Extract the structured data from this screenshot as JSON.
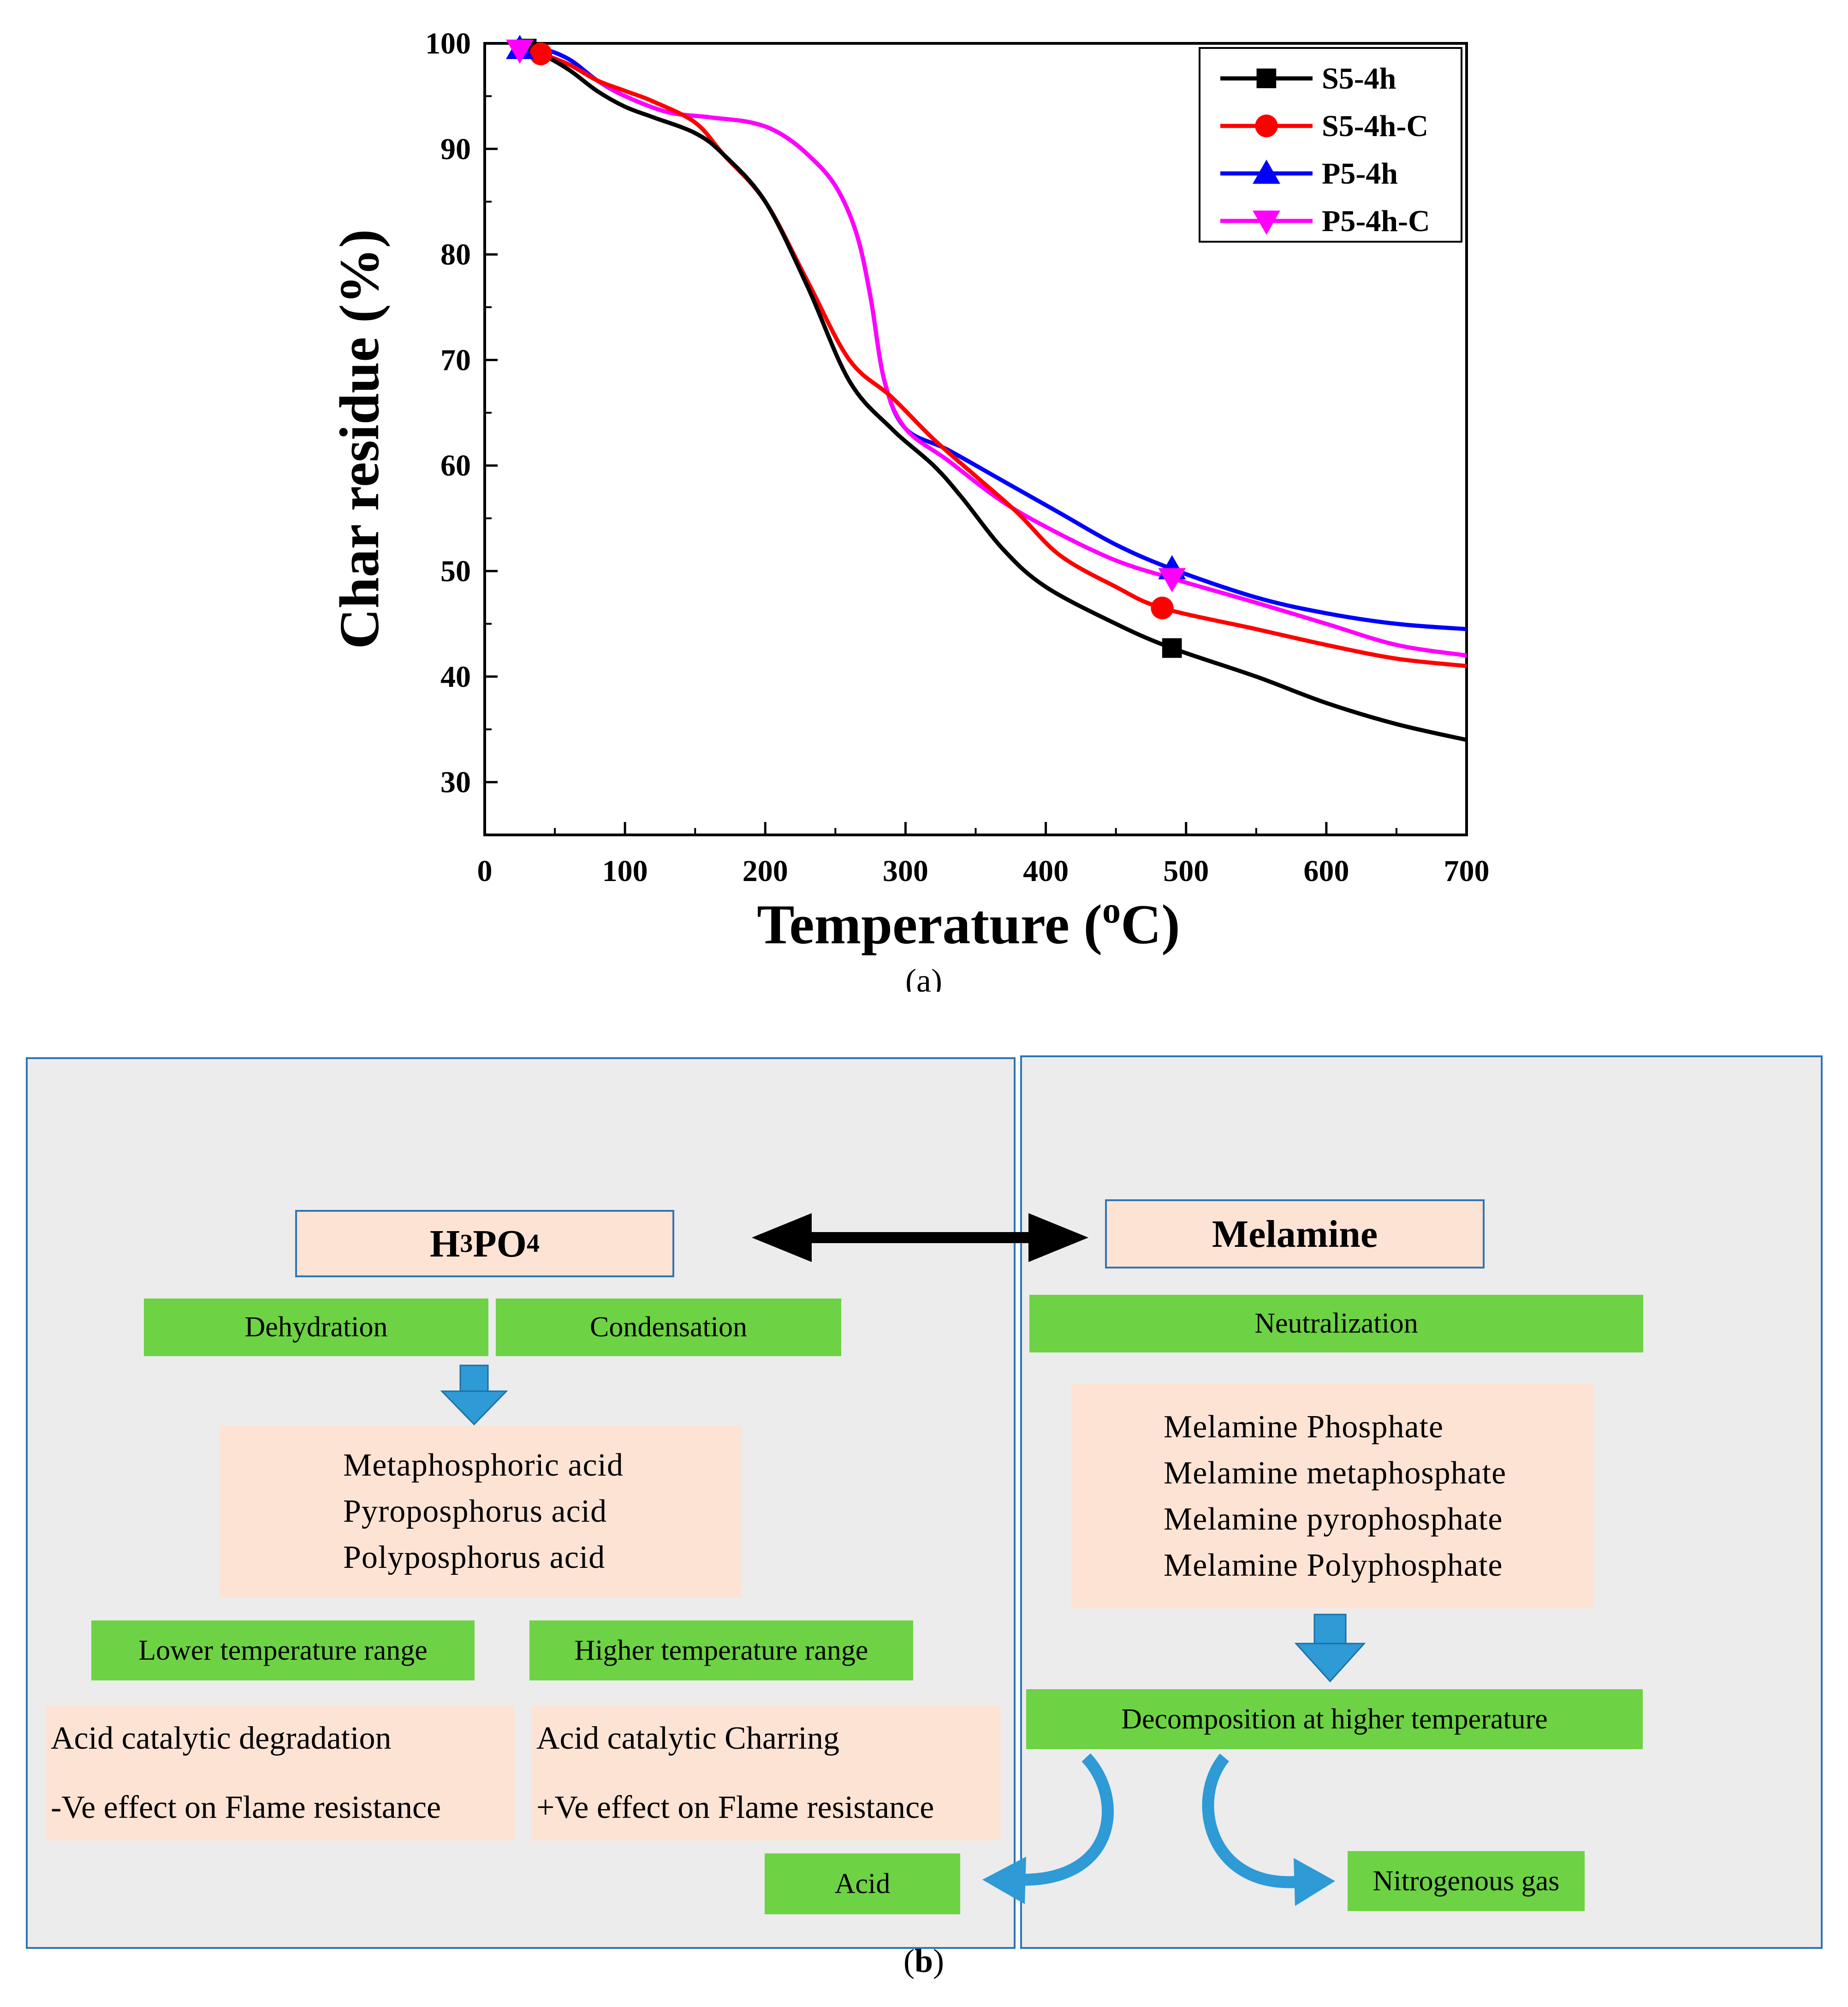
{
  "chart_data": {
    "type": "line",
    "xlabel": "Temperature (oC)",
    "ylabel": "Char residue (%)",
    "xlim": [
      0,
      700
    ],
    "ylim": [
      25,
      100
    ],
    "xticks": [
      "0",
      "100",
      "200",
      "300",
      "400",
      "500",
      "600",
      "700"
    ],
    "yticks": [
      "30",
      "40",
      "50",
      "60",
      "70",
      "80",
      "90",
      "100"
    ],
    "legend_position": "top-right",
    "grid": false,
    "caption": "(a)",
    "series": [
      {
        "name": "S5-4h",
        "color": "#000000",
        "marker": "square",
        "marker_x": 490,
        "x": [
          20,
          40,
          60,
          80,
          100,
          120,
          150,
          170,
          200,
          230,
          260,
          290,
          320,
          340,
          370,
          400,
          450,
          490,
          550,
          600,
          650,
          700
        ],
        "y": [
          100,
          99,
          97.5,
          95.5,
          94,
          93,
          91.5,
          89.5,
          85,
          77,
          68,
          63.5,
          60,
          57,
          52,
          48.5,
          45,
          42.7,
          40,
          37.5,
          35.5,
          34
        ]
      },
      {
        "name": "S5-4h-C",
        "color": "#ff0000",
        "marker": "circle",
        "marker_x": 483,
        "x": [
          20,
          40,
          60,
          80,
          100,
          120,
          150,
          170,
          200,
          230,
          260,
          290,
          320,
          350,
          380,
          410,
          450,
          483,
          550,
          600,
          650,
          700
        ],
        "y": [
          100,
          99,
          98,
          96.5,
          95.5,
          94.5,
          92.5,
          89.5,
          85,
          77.5,
          70,
          66.5,
          62.5,
          59,
          55.5,
          51.5,
          48.5,
          46.5,
          44.5,
          43,
          41.7,
          41
        ]
      },
      {
        "name": "P5-4h",
        "color": "#0000ff",
        "marker": "triangle-up",
        "marker_x": 490,
        "x": [
          20,
          40,
          60,
          80,
          100,
          130,
          160,
          190,
          210,
          230,
          250,
          265,
          275,
          285,
          300,
          330,
          370,
          410,
          450,
          490,
          550,
          600,
          650,
          700
        ],
        "y": [
          99.5,
          99.5,
          98.5,
          96.5,
          95,
          93.5,
          93,
          92.5,
          91.5,
          89.5,
          86.5,
          82,
          76,
          68,
          63.5,
          61.5,
          58.5,
          55.5,
          52.5,
          50.2,
          47.5,
          46,
          45,
          44.5
        ]
      },
      {
        "name": "P5-4h-C",
        "color": "#ff00ff",
        "marker": "triangle-down",
        "marker_x": 490,
        "x": [
          20,
          40,
          60,
          80,
          100,
          130,
          160,
          190,
          210,
          230,
          250,
          265,
          275,
          285,
          300,
          330,
          370,
          410,
          450,
          490,
          550,
          600,
          650,
          700
        ],
        "y": [
          99.5,
          99,
          98,
          96.5,
          95,
          93.5,
          93,
          92.5,
          91.5,
          89.5,
          86.5,
          82,
          76,
          68,
          63.5,
          60.5,
          56.5,
          53.5,
          51,
          49.3,
          47,
          45,
          43,
          42
        ]
      }
    ]
  },
  "diagram": {
    "caption": "(b)",
    "left": {
      "title_main": "H",
      "title_sub1": "3",
      "title_mid": "PO",
      "title_sub2": "4",
      "dehydration": "Dehydration",
      "condensation": "Condensation",
      "acids": [
        "Metaphosphoric acid",
        "Pyroposphorus acid",
        "Polyposphorus acid"
      ],
      "lower_range": "Lower temperature range",
      "higher_range": "Higher temperature range",
      "lower_effect": [
        "Acid catalytic degradation",
        "-Ve effect on Flame resistance"
      ],
      "higher_effect": [
        "Acid catalytic Charring",
        "+Ve effect on Flame resistance"
      ],
      "acid": "Acid"
    },
    "right": {
      "title": "Melamine",
      "neutralization": "Neutralization",
      "products": [
        "Melamine Phosphate",
        "Melamine metaphosphate",
        "Melamine pyrophosphate",
        "Melamine Polyphosphate"
      ],
      "decomposition": "Decomposition at higher temperature",
      "gas": "Nitrogenous gas"
    },
    "colors": {
      "green": "#6dd344",
      "peach": "#fde3d4",
      "border": "#2e75b6",
      "arrow": "#2e9ad6"
    }
  }
}
